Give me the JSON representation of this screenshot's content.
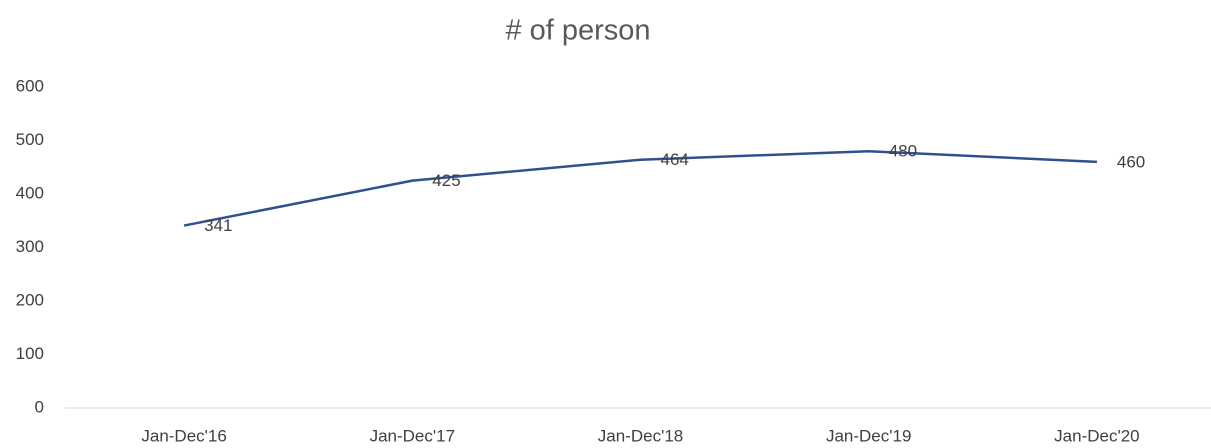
{
  "chart_data": {
    "type": "line",
    "title": "# of person",
    "categories": [
      "Jan-Dec'16",
      "Jan-Dec'17",
      "Jan-Dec'18",
      "Jan-Dec'19",
      "Jan-Dec'20"
    ],
    "values": [
      341,
      425,
      464,
      480,
      460
    ],
    "color": "#2f528f",
    "ylim": [
      0,
      600
    ],
    "yticks": [
      0,
      100,
      200,
      300,
      400,
      500,
      600
    ],
    "grid": false
  }
}
